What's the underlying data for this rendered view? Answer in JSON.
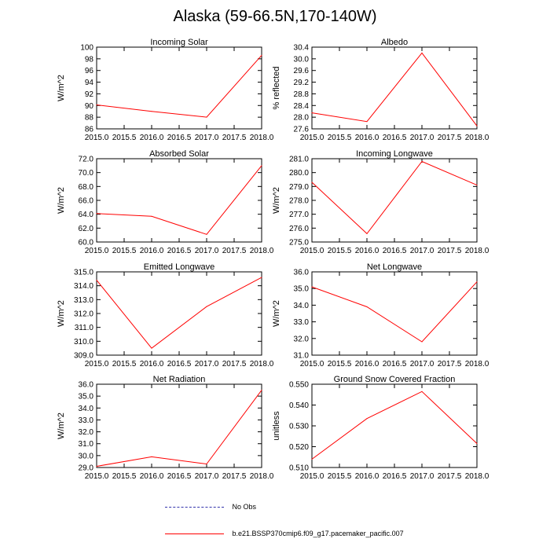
{
  "page": {
    "title": "Alaska (59-66.5N,170-140W)"
  },
  "colors": {
    "model": "#ff0000",
    "obs": "#3333aa",
    "axis": "#000000"
  },
  "legend": {
    "obs_label": "No Obs",
    "model_label": "b.e21.BSSP370cmip6.f09_g17.pacemaker_pacific.007"
  },
  "chart_data": [
    {
      "type": "line",
      "title": "Incoming Solar",
      "ylabel": "W/m^2",
      "xlabel": "",
      "x": [
        2015,
        2016,
        2017,
        2018
      ],
      "values": [
        90.1,
        89.0,
        88.0,
        98.6
      ],
      "xlim": [
        2015,
        2018
      ],
      "ylim": [
        86,
        100
      ],
      "xticks": [
        "2015.0",
        "2015.5",
        "2016.0",
        "2016.5",
        "2017.0",
        "2017.5",
        "2018.0"
      ],
      "yticks": [
        "86",
        "88",
        "90",
        "92",
        "94",
        "96",
        "98",
        "100"
      ]
    },
    {
      "type": "line",
      "title": "Albedo",
      "ylabel": "% reflected",
      "xlabel": "",
      "x": [
        2015,
        2016,
        2017,
        2018
      ],
      "values": [
        28.15,
        27.85,
        30.2,
        27.7
      ],
      "xlim": [
        2015,
        2018
      ],
      "ylim": [
        27.6,
        30.4
      ],
      "xticks": [
        "2015.0",
        "2015.5",
        "2016.0",
        "2016.5",
        "2017.0",
        "2017.5",
        "2018.0"
      ],
      "yticks": [
        "27.6",
        "28.0",
        "28.4",
        "28.8",
        "29.2",
        "29.6",
        "30.0",
        "30.4"
      ]
    },
    {
      "type": "line",
      "title": "Absorbed Solar",
      "ylabel": "W/m^2",
      "xlabel": "",
      "x": [
        2015,
        2016,
        2017,
        2018
      ],
      "values": [
        64.1,
        63.7,
        61.1,
        71.0
      ],
      "xlim": [
        2015,
        2018
      ],
      "ylim": [
        60,
        72
      ],
      "xticks": [
        "2015.0",
        "2015.5",
        "2016.0",
        "2016.5",
        "2017.0",
        "2017.5",
        "2018.0"
      ],
      "yticks": [
        "60.0",
        "62.0",
        "64.0",
        "66.0",
        "68.0",
        "70.0",
        "72.0"
      ]
    },
    {
      "type": "line",
      "title": "Incoming Longwave",
      "ylabel": "W/m^2",
      "xlabel": "",
      "x": [
        2015,
        2016,
        2017,
        2018
      ],
      "values": [
        279.3,
        275.6,
        280.8,
        279.1
      ],
      "xlim": [
        2015,
        2018
      ],
      "ylim": [
        275,
        281
      ],
      "xticks": [
        "2015.0",
        "2015.5",
        "2016.0",
        "2016.5",
        "2017.0",
        "2017.5",
        "2018.0"
      ],
      "yticks": [
        "275.0",
        "276.0",
        "277.0",
        "278.0",
        "279.0",
        "280.0",
        "281.0"
      ]
    },
    {
      "type": "line",
      "title": "Emitted Longwave",
      "ylabel": "W/m^2",
      "xlabel": "",
      "x": [
        2015,
        2016,
        2017,
        2018
      ],
      "values": [
        314.4,
        309.5,
        312.5,
        314.6
      ],
      "xlim": [
        2015,
        2018
      ],
      "ylim": [
        309,
        315
      ],
      "xticks": [
        "2015.0",
        "2015.5",
        "2016.0",
        "2016.5",
        "2017.0",
        "2017.5",
        "2018.0"
      ],
      "yticks": [
        "309.0",
        "310.0",
        "311.0",
        "312.0",
        "313.0",
        "314.0",
        "315.0"
      ]
    },
    {
      "type": "line",
      "title": "Net Longwave",
      "ylabel": "W/m^2",
      "xlabel": "",
      "x": [
        2015,
        2016,
        2017,
        2018
      ],
      "values": [
        35.1,
        33.9,
        31.8,
        35.4
      ],
      "xlim": [
        2015,
        2018
      ],
      "ylim": [
        31,
        36
      ],
      "xticks": [
        "2015.0",
        "2015.5",
        "2016.0",
        "2016.5",
        "2017.0",
        "2017.5",
        "2018.0"
      ],
      "yticks": [
        "31.0",
        "32.0",
        "33.0",
        "34.0",
        "35.0",
        "36.0"
      ]
    },
    {
      "type": "line",
      "title": "Net Radiation",
      "ylabel": "W/m^2",
      "xlabel": "",
      "x": [
        2015,
        2016,
        2017,
        2018
      ],
      "values": [
        29.1,
        29.9,
        29.3,
        35.5
      ],
      "xlim": [
        2015,
        2018
      ],
      "ylim": [
        29,
        36
      ],
      "xticks": [
        "2015.0",
        "2015.5",
        "2016.0",
        "2016.5",
        "2017.0",
        "2017.5",
        "2018.0"
      ],
      "yticks": [
        "29.0",
        "30.0",
        "31.0",
        "32.0",
        "33.0",
        "34.0",
        "35.0",
        "36.0"
      ]
    },
    {
      "type": "line",
      "title": "Ground Snow Covered Fraction",
      "ylabel": "unitless",
      "xlabel": "",
      "x": [
        2015,
        2016,
        2017,
        2018
      ],
      "values": [
        0.514,
        0.5335,
        0.5465,
        0.5215
      ],
      "xlim": [
        2015,
        2018
      ],
      "ylim": [
        0.51,
        0.55
      ],
      "xticks": [
        "2015.0",
        "2015.5",
        "2016.0",
        "2016.5",
        "2017.0",
        "2017.5",
        "2018.0"
      ],
      "yticks": [
        "0.510",
        "0.520",
        "0.530",
        "0.540",
        "0.550"
      ]
    }
  ]
}
